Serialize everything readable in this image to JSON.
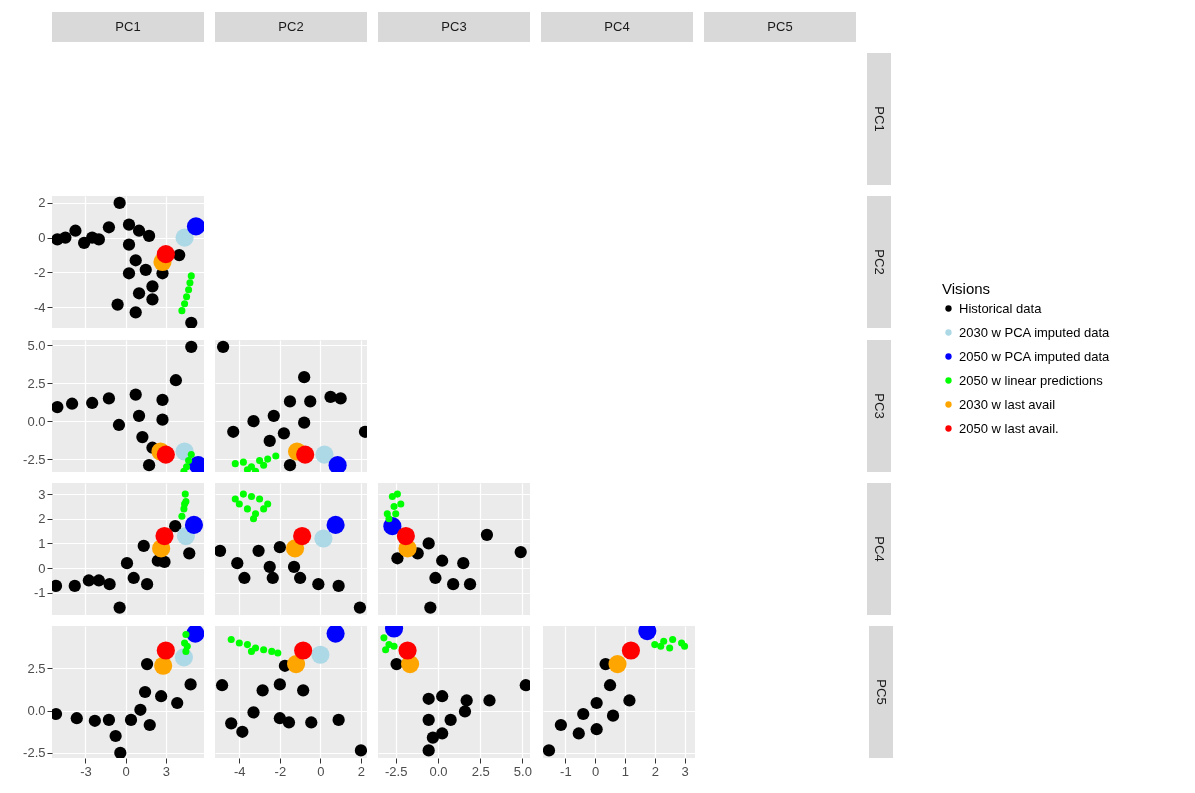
{
  "chart_data": [
    {
      "type": "other",
      "annotations": [
        "PC1",
        "PC2",
        "PC3",
        "PC4",
        "PC5",
        "PC1",
        "PC2",
        "PC3",
        "PC4",
        "PC5"
      ]
    },
    {
      "type": "scatter",
      "marker": "circle",
      "grid": true,
      "legend": "right",
      "tick_labels": "y",
      "xlim": [
        -5.5,
        5.85
      ],
      "xticks": [
        -3,
        0,
        3
      ],
      "ylim": [
        -5.2,
        2.4
      ],
      "yticks": [
        -4,
        -2,
        0,
        2
      ],
      "series": [
        {
          "name": "Historical data",
          "color": "#000000",
          "x": [
            -5.1,
            -4.5,
            -3.75,
            -3.1,
            -2.5,
            -2.0,
            -0.45,
            -1.25,
            0.25,
            1.0,
            1.75,
            0.25,
            0.75,
            0.25,
            1.5,
            4.0,
            2.0,
            1.0,
            -0.6,
            0.75,
            2.0,
            4.9,
            2.75
          ],
          "values": [
            -0.1,
            0,
            0.4,
            -0.3,
            0,
            -0.1,
            2.0,
            0.6,
            0.75,
            0.4,
            0.1,
            -0.4,
            -1.3,
            -2.05,
            -1.85,
            -1.0,
            -2.8,
            -3.2,
            -3.85,
            -4.3,
            -3.55,
            -4.9,
            -2.05
          ]
        },
        {
          "name": "2030 w PCA imputed data",
          "color": "#add8e6",
          "x": [
            4.4
          ],
          "values": [
            0.0
          ]
        },
        {
          "name": "2050 w PCA imputed data",
          "color": "#0000ff",
          "x": [
            5.25
          ],
          "values": [
            0.65
          ]
        },
        {
          "name": "2050 w linear predictions",
          "color": "#00ff00",
          "x": [
            4.9,
            4.8,
            4.7,
            4.55,
            4.4,
            4.2
          ],
          "values": [
            -2.2,
            -2.6,
            -3.0,
            -3.4,
            -3.8,
            -4.2
          ]
        },
        {
          "name": "2030 w last avail",
          "color": "#ffa500",
          "x": [
            2.75
          ],
          "values": [
            -1.4
          ]
        },
        {
          "name": "2050 w last avail.",
          "color": "#ff0000",
          "x": [
            3.0
          ],
          "values": [
            -0.95
          ]
        }
      ]
    },
    {
      "type": "scatter",
      "marker": "circle",
      "grid": true,
      "legend": "right",
      "tick_labels": "y",
      "xlim": [
        -5.5,
        5.85
      ],
      "xticks": [
        -3,
        0,
        3
      ],
      "ylim": [
        -3.35,
        5.35
      ],
      "yticks": [
        {
          "value": -2.5,
          "label": "-2.5"
        },
        {
          "value": 0,
          "label": "0.0"
        },
        {
          "value": 2.5,
          "label": "2.5"
        },
        {
          "value": 5,
          "label": "5.0"
        }
      ],
      "series": [
        {
          "name": "Historical data",
          "color": "#000000",
          "x": [
            -5.1,
            -4.0,
            -2.5,
            -1.25,
            4.9,
            3.75,
            0.75,
            2.75,
            -0.5,
            1.0,
            2.75,
            1.25,
            2.0,
            1.75
          ],
          "values": [
            0.93,
            1.15,
            1.2,
            1.5,
            4.9,
            2.7,
            1.75,
            1.4,
            -0.25,
            0.35,
            0.1,
            -1.05,
            -1.75,
            -2.9
          ]
        },
        {
          "name": "2030 w PCA imputed data",
          "color": "#add8e6",
          "x": [
            4.4
          ],
          "values": [
            -2.0
          ]
        },
        {
          "name": "2050 w PCA imputed data",
          "color": "#0000ff",
          "x": [
            5.4
          ],
          "values": [
            -2.9
          ]
        },
        {
          "name": "2050 w linear predictions",
          "color": "#00ff00",
          "x": [
            4.9,
            4.7,
            4.55,
            4.35
          ],
          "values": [
            -2.2,
            -2.6,
            -3.0,
            -3.3
          ]
        },
        {
          "name": "2030 w last avail",
          "color": "#ffa500",
          "x": [
            2.6
          ],
          "values": [
            -2.0
          ]
        },
        {
          "name": "2050 w last avail.",
          "color": "#ff0000",
          "x": [
            3.0
          ],
          "values": [
            -2.2
          ]
        }
      ]
    },
    {
      "type": "scatter",
      "marker": "circle",
      "grid": true,
      "legend": "right",
      "tick_labels": false,
      "xlim": [
        -5.2,
        2.3
      ],
      "xticks": [
        -4,
        -2,
        0,
        2
      ],
      "ylim": [
        -3.35,
        5.35
      ],
      "yticks": [
        {
          "value": -2.5,
          "label": "-2.5"
        },
        {
          "value": 0,
          "label": "0.0"
        },
        {
          "value": 2.5,
          "label": "2.5"
        },
        {
          "value": 5,
          "label": "5.0"
        }
      ],
      "series": [
        {
          "name": "Historical data",
          "color": "#000000",
          "x": [
            -4.8,
            -0.8,
            2.2,
            -4.3,
            -3.3,
            -2.3,
            -1.5,
            -0.5,
            0.5,
            1.0,
            -1.8,
            -0.8,
            -2.5,
            -1.5
          ],
          "values": [
            4.9,
            2.9,
            -0.7,
            -0.7,
            0.0,
            0.35,
            1.3,
            1.3,
            1.6,
            1.5,
            -0.8,
            -0.1,
            -1.3,
            -2.9
          ]
        },
        {
          "name": "2030 w PCA imputed data",
          "color": "#add8e6",
          "x": [
            0.2
          ],
          "values": [
            -2.2
          ]
        },
        {
          "name": "2050 w PCA imputed data",
          "color": "#0000ff",
          "x": [
            0.85
          ],
          "values": [
            -2.9
          ]
        },
        {
          "name": "2050 w linear predictions",
          "color": "#00ff00",
          "x": [
            -4.2,
            -3.8,
            -3.4,
            -3.0,
            -2.6,
            -2.2,
            -3.2,
            -3.6,
            -2.8
          ],
          "values": [
            -2.8,
            -2.7,
            -3.0,
            -2.6,
            -2.5,
            -2.3,
            -3.3,
            -3.2,
            -2.9
          ]
        },
        {
          "name": "2030 w last avail",
          "color": "#ffa500",
          "x": [
            -1.15
          ],
          "values": [
            -2.0
          ]
        },
        {
          "name": "2050 w last avail.",
          "color": "#ff0000",
          "x": [
            -0.75
          ],
          "values": [
            -2.2
          ]
        }
      ]
    },
    {
      "type": "scatter",
      "marker": "circle",
      "grid": true,
      "legend": "right",
      "tick_labels": "y",
      "xlim": [
        -5.5,
        5.85
      ],
      "xticks": [
        -3,
        0,
        3
      ],
      "ylim": [
        -1.9,
        3.45
      ],
      "yticks": [
        -1,
        0,
        1,
        2,
        3
      ],
      "series": [
        {
          "name": "Historical data",
          "color": "#000000",
          "x": [
            -5.2,
            -3.8,
            -2.75,
            -2.0,
            -1.2,
            -0.45,
            1.35,
            0.6,
            1.6,
            0.1,
            2.4,
            2.9,
            4.75,
            3.7
          ],
          "values": [
            -0.72,
            -0.72,
            -0.5,
            -0.5,
            -0.65,
            -1.6,
            0.9,
            -0.4,
            -0.65,
            0.2,
            0.3,
            0.25,
            0.6,
            1.7
          ]
        },
        {
          "name": "2030 w PCA imputed data",
          "color": "#add8e6",
          "x": [
            4.5
          ],
          "values": [
            1.3
          ]
        },
        {
          "name": "2050 w PCA imputed data",
          "color": "#0000ff",
          "x": [
            5.1
          ],
          "values": [
            1.75
          ]
        },
        {
          "name": "2050 w linear predictions",
          "color": "#00ff00",
          "x": [
            4.45,
            4.5,
            4.35,
            4.2,
            4.4
          ],
          "values": [
            3.0,
            2.7,
            2.4,
            2.1,
            2.6
          ]
        },
        {
          "name": "2030 w last avail",
          "color": "#ffa500",
          "x": [
            2.65
          ],
          "values": [
            0.8
          ]
        },
        {
          "name": "2050 w last avail.",
          "color": "#ff0000",
          "x": [
            2.9
          ],
          "values": [
            1.3
          ]
        }
      ]
    },
    {
      "type": "scatter",
      "marker": "circle",
      "grid": true,
      "legend": "right",
      "tick_labels": false,
      "xlim": [
        -5.2,
        2.3
      ],
      "xticks": [
        -4,
        -2,
        0,
        2
      ],
      "ylim": [
        -1.9,
        3.45
      ],
      "yticks": [
        -1,
        0,
        1,
        2,
        3
      ],
      "series": [
        {
          "name": "Historical data",
          "color": "#000000",
          "x": [
            -4.95,
            -4.1,
            -3.75,
            -3.05,
            -2.5,
            -2.0,
            -1.3,
            -1.0,
            -0.1,
            0.9,
            1.95,
            -2.35
          ],
          "values": [
            0.7,
            0.2,
            -0.4,
            0.7,
            0.05,
            0.85,
            0.05,
            -0.4,
            -0.65,
            -0.72,
            -1.6,
            -0.4
          ]
        },
        {
          "name": "2030 w PCA imputed data",
          "color": "#add8e6",
          "x": [
            0.15
          ],
          "values": [
            1.2
          ]
        },
        {
          "name": "2050 w PCA imputed data",
          "color": "#0000ff",
          "x": [
            0.75
          ],
          "values": [
            1.75
          ]
        },
        {
          "name": "2050 w linear predictions",
          "color": "#00ff00",
          "x": [
            -4.2,
            -3.8,
            -3.4,
            -3.0,
            -2.6,
            -3.6,
            -3.2,
            -2.8,
            -4.0,
            -3.3
          ],
          "values": [
            2.8,
            3.0,
            2.9,
            2.8,
            2.6,
            2.4,
            2.2,
            2.4,
            2.6,
            2.0
          ]
        },
        {
          "name": "2030 w last avail",
          "color": "#ffa500",
          "x": [
            -1.25
          ],
          "values": [
            0.8
          ]
        },
        {
          "name": "2050 w last avail.",
          "color": "#ff0000",
          "x": [
            -0.9
          ],
          "values": [
            1.3
          ]
        }
      ]
    },
    {
      "type": "scatter",
      "marker": "circle",
      "grid": true,
      "legend": "right",
      "tick_labels": false,
      "xlim": [
        -3.55,
        5.45
      ],
      "xticks": [
        {
          "value": -2.5,
          "label": "-2.5"
        },
        {
          "value": 0,
          "label": "0.0"
        },
        {
          "value": 2.5,
          "label": "2.5"
        },
        {
          "value": 5,
          "label": "5.0"
        }
      ],
      "ylim": [
        -1.9,
        3.45
      ],
      "yticks": [
        -1,
        0,
        1,
        2,
        3
      ],
      "series": [
        {
          "name": "Historical data",
          "color": "#000000",
          "x": [
            -2.4,
            -0.55,
            0.25,
            -0.15,
            1.5,
            1.9,
            0.9,
            2.9,
            4.9,
            -0.45,
            -1.2
          ],
          "values": [
            0.4,
            1.0,
            0.3,
            -0.4,
            0.2,
            -0.65,
            -0.65,
            1.35,
            0.65,
            -1.6,
            0.6
          ]
        },
        {
          "name": "2030 w PCA imputed data",
          "color": "#add8e6",
          "x": [
            null
          ],
          "values": [
            null
          ]
        },
        {
          "name": "2050 w PCA imputed data",
          "color": "#0000ff",
          "x": [
            -2.7
          ],
          "values": [
            1.7
          ]
        },
        {
          "name": "2050 w linear predictions",
          "color": "#00ff00",
          "x": [
            -3.0,
            -2.7,
            -2.4,
            -2.2,
            -2.6,
            -2.9,
            -2.5
          ],
          "values": [
            2.2,
            2.9,
            3.0,
            2.6,
            2.5,
            2.0,
            2.2
          ]
        },
        {
          "name": "2030 w last avail",
          "color": "#ffa500",
          "x": [
            -1.8
          ],
          "values": [
            0.8
          ]
        },
        {
          "name": "2050 w last avail.",
          "color": "#ff0000",
          "x": [
            -1.9
          ],
          "values": [
            1.3
          ]
        }
      ]
    },
    {
      "type": "scatter",
      "marker": "circle",
      "grid": true,
      "legend": "right",
      "xlim": [
        -5.5,
        5.85
      ],
      "xticks": [
        -3,
        0,
        3
      ],
      "ylim": [
        -2.8,
        5.0
      ],
      "yticks": [
        {
          "value": -2.5,
          "label": "-2.5"
        },
        {
          "value": 0,
          "label": "0.0"
        },
        {
          "value": 2.5,
          "label": "2.5"
        }
      ],
      "series": [
        {
          "name": "Historical data",
          "color": "#000000",
          "x": [
            -5.2,
            -3.65,
            -2.3,
            -1.25,
            -0.4,
            -0.75,
            0.4,
            1.45,
            1.8,
            2.65,
            3.85,
            4.85,
            1.6,
            1.1
          ],
          "values": [
            -0.2,
            -0.45,
            -0.6,
            -0.55,
            -2.5,
            -1.5,
            -0.55,
            1.1,
            -0.85,
            0.85,
            0.45,
            1.55,
            2.75,
            0.05
          ]
        },
        {
          "name": "2030 w PCA imputed data",
          "color": "#add8e6",
          "x": [
            4.35
          ],
          "values": [
            3.15
          ]
        },
        {
          "name": "2050 w PCA imputed data",
          "color": "#0000ff",
          "x": [
            5.2
          ],
          "values": [
            4.55
          ]
        },
        {
          "name": "2050 w linear predictions",
          "color": "#00ff00",
          "x": [
            4.5,
            4.4,
            4.6,
            4.5
          ],
          "values": [
            4.5,
            4.0,
            3.8,
            3.5
          ]
        },
        {
          "name": "2030 w last avail",
          "color": "#ffa500",
          "x": [
            2.8
          ],
          "values": [
            2.65
          ]
        },
        {
          "name": "2050 w last avail.",
          "color": "#ff0000",
          "x": [
            3.0
          ],
          "values": [
            3.55
          ]
        }
      ]
    },
    {
      "type": "scatter",
      "marker": "circle",
      "grid": true,
      "legend": "right",
      "tick_labels": "x",
      "xlim": [
        -5.2,
        2.3
      ],
      "xticks": [
        -4,
        -2,
        0,
        2
      ],
      "ylim": [
        -2.8,
        5.0
      ],
      "yticks": [
        {
          "value": -2.5,
          "label": "-2.5"
        },
        {
          "value": 0,
          "label": "0.0"
        },
        {
          "value": 2.5,
          "label": "2.5"
        }
      ],
      "series": [
        {
          "name": "Historical data",
          "color": "#000000",
          "x": [
            -4.85,
            -4.4,
            -3.85,
            -3.3,
            -2.85,
            -2.0,
            -0.85,
            -1.55,
            -0.45,
            0.9,
            2.0,
            -2.0,
            -1.75
          ],
          "values": [
            1.5,
            -0.75,
            -1.25,
            -0.1,
            1.2,
            1.55,
            1.2,
            -0.7,
            -0.7,
            -0.55,
            -2.35,
            -0.45,
            2.65
          ]
        },
        {
          "name": "2030 w PCA imputed data",
          "color": "#add8e6",
          "x": [
            0.0
          ],
          "values": [
            3.3
          ]
        },
        {
          "name": "2050 w PCA imputed data",
          "color": "#0000ff",
          "x": [
            0.75
          ],
          "values": [
            4.55
          ]
        },
        {
          "name": "2050 w linear predictions",
          "color": "#00ff00",
          "x": [
            -4.4,
            -4.0,
            -3.6,
            -3.2,
            -2.8,
            -2.4,
            -2.1,
            -3.4
          ],
          "values": [
            4.2,
            4.0,
            3.9,
            3.7,
            3.6,
            3.5,
            3.4,
            3.5
          ]
        },
        {
          "name": "2030 w last avail",
          "color": "#ffa500",
          "x": [
            -1.2
          ],
          "values": [
            2.75
          ]
        },
        {
          "name": "2050 w last avail.",
          "color": "#ff0000",
          "x": [
            -0.85
          ],
          "values": [
            3.55
          ]
        }
      ]
    },
    {
      "type": "scatter",
      "marker": "circle",
      "grid": true,
      "legend": "right",
      "tick_labels": "x",
      "xlim": [
        -3.55,
        5.45
      ],
      "xticks": [
        {
          "value": -2.5,
          "label": "-2.5"
        },
        {
          "value": 0,
          "label": "0.0"
        },
        {
          "value": 2.5,
          "label": "2.5"
        },
        {
          "value": 5,
          "label": "5.0"
        }
      ],
      "ylim": [
        -2.8,
        5.0
      ],
      "yticks": [
        {
          "value": -2.5,
          "label": "-2.5"
        },
        {
          "value": 0,
          "label": "0.0"
        },
        {
          "value": 2.5,
          "label": "2.5"
        }
      ],
      "series": [
        {
          "name": "Historical data",
          "color": "#000000",
          "x": [
            -2.45,
            -0.55,
            0.25,
            -0.55,
            0.25,
            -0.55,
            1.6,
            1.7,
            3.05,
            5.2,
            0.75,
            -0.3
          ],
          "values": [
            2.75,
            0.7,
            0.85,
            -0.55,
            -1.35,
            -2.35,
            -0.05,
            0.6,
            0.6,
            1.5,
            -0.55,
            -1.6
          ]
        },
        {
          "name": "2030 w PCA imputed data",
          "color": "#add8e6",
          "x": [
            null
          ],
          "values": [
            null
          ]
        },
        {
          "name": "2050 w PCA imputed data",
          "color": "#0000ff",
          "x": [
            -2.6
          ],
          "values": [
            4.85
          ]
        },
        {
          "name": "2050 w linear predictions",
          "color": "#00ff00",
          "x": [
            -3.2,
            -2.9,
            -3.1,
            -2.6
          ],
          "values": [
            4.3,
            3.9,
            3.6,
            3.8
          ]
        },
        {
          "name": "2030 w last avail",
          "color": "#ffa500",
          "x": [
            -1.65
          ],
          "values": [
            2.75
          ]
        },
        {
          "name": "2050 w last avail.",
          "color": "#ff0000",
          "x": [
            -1.8
          ],
          "values": [
            3.55
          ]
        }
      ]
    },
    {
      "type": "scatter",
      "marker": "circle",
      "grid": true,
      "tick_labels": "x",
      "legend": "right",
      "legend_title": "Visions",
      "xlim": [
        -1.75,
        3.35
      ],
      "xticks": [
        -1,
        0,
        1,
        2,
        3
      ],
      "ylim": [
        -2.8,
        5.0
      ],
      "yticks": [
        {
          "value": -2.5,
          "label": "-2.5"
        },
        {
          "value": 0,
          "label": "0.0"
        },
        {
          "value": 2.5,
          "label": "2.5"
        }
      ],
      "series": [
        {
          "name": "Historical data",
          "color": "#000000",
          "x": [
            -1.55,
            -1.15,
            -0.55,
            -0.4,
            0.05,
            0.5,
            1.15,
            0.6,
            0.05,
            0.35
          ],
          "values": [
            -2.35,
            -0.85,
            -1.35,
            -0.2,
            0.45,
            1.5,
            0.6,
            -0.3,
            -1.1,
            2.75
          ]
        },
        {
          "name": "2030 w PCA imputed data",
          "color": "#add8e6",
          "x": [
            null
          ],
          "values": [
            null
          ]
        },
        {
          "name": "2050 w PCA imputed data",
          "color": "#0000ff",
          "x": [
            1.75
          ],
          "values": [
            4.7
          ]
        },
        {
          "name": "2050 w linear predictions",
          "color": "#00ff00",
          "x": [
            2.0,
            2.3,
            2.6,
            2.9,
            2.5,
            2.2,
            3.0
          ],
          "values": [
            3.9,
            4.1,
            4.2,
            4.0,
            3.7,
            3.8,
            3.8
          ]
        },
        {
          "name": "2030 w last avail",
          "color": "#ffa500",
          "x": [
            0.75
          ],
          "values": [
            2.75
          ]
        },
        {
          "name": "2050 w last avail.",
          "color": "#ff0000",
          "x": [
            1.2
          ],
          "values": [
            3.55
          ]
        }
      ]
    }
  ]
}
